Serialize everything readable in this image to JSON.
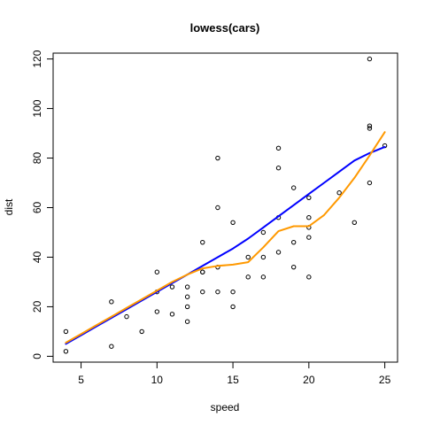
{
  "chart_data": {
    "type": "scatter",
    "title": "lowess(cars)",
    "xlabel": "speed",
    "ylabel": "dist",
    "xlim": [
      3.16,
      25.84
    ],
    "ylim": [
      -2.36,
      122.36
    ],
    "x_ticks": [
      5,
      10,
      15,
      20,
      25
    ],
    "y_ticks": [
      0,
      20,
      40,
      60,
      80,
      100,
      120
    ],
    "grid": false,
    "legend": "none",
    "points": [
      [
        4,
        2
      ],
      [
        4,
        10
      ],
      [
        7,
        4
      ],
      [
        7,
        22
      ],
      [
        8,
        16
      ],
      [
        9,
        10
      ],
      [
        10,
        18
      ],
      [
        10,
        26
      ],
      [
        10,
        34
      ],
      [
        11,
        17
      ],
      [
        11,
        28
      ],
      [
        12,
        14
      ],
      [
        12,
        20
      ],
      [
        12,
        24
      ],
      [
        12,
        28
      ],
      [
        13,
        26
      ],
      [
        13,
        34
      ],
      [
        13,
        34
      ],
      [
        13,
        46
      ],
      [
        14,
        26
      ],
      [
        14,
        36
      ],
      [
        14,
        60
      ],
      [
        14,
        80
      ],
      [
        15,
        20
      ],
      [
        15,
        26
      ],
      [
        15,
        54
      ],
      [
        16,
        32
      ],
      [
        16,
        40
      ],
      [
        17,
        32
      ],
      [
        17,
        40
      ],
      [
        17,
        50
      ],
      [
        18,
        42
      ],
      [
        18,
        56
      ],
      [
        18,
        76
      ],
      [
        18,
        84
      ],
      [
        19,
        36
      ],
      [
        19,
        46
      ],
      [
        19,
        68
      ],
      [
        20,
        32
      ],
      [
        20,
        48
      ],
      [
        20,
        52
      ],
      [
        20,
        56
      ],
      [
        20,
        64
      ],
      [
        22,
        66
      ],
      [
        23,
        54
      ],
      [
        24,
        70
      ],
      [
        24,
        92
      ],
      [
        24,
        93
      ],
      [
        24,
        120
      ],
      [
        25,
        85
      ]
    ],
    "series": [
      {
        "color": "#0000ff",
        "x": [
          4,
          5,
          6,
          7,
          8,
          9,
          10,
          11,
          12,
          13,
          14,
          15,
          16,
          17,
          18,
          19,
          20,
          21,
          22,
          23,
          24,
          25
        ],
        "y": [
          5,
          8.5,
          12,
          15.5,
          19,
          22.5,
          26,
          29.5,
          33,
          36.5,
          40,
          43.5,
          47.5,
          52,
          56.5,
          61,
          65.5,
          70,
          74.5,
          79,
          82,
          84.5
        ]
      },
      {
        "color": "#ff9900",
        "x": [
          4,
          5,
          6,
          7,
          8,
          9,
          10,
          11,
          12,
          13,
          14,
          15,
          16,
          17,
          18,
          19,
          20,
          21,
          22,
          23,
          24,
          25
        ],
        "y": [
          5.5,
          9,
          12.5,
          16,
          19.5,
          23,
          26.5,
          30,
          33,
          35.5,
          36.5,
          37,
          38,
          44,
          50.5,
          52.5,
          52.5,
          57,
          64,
          72,
          81,
          90.5
        ]
      }
    ],
    "point_color": "#000000"
  }
}
